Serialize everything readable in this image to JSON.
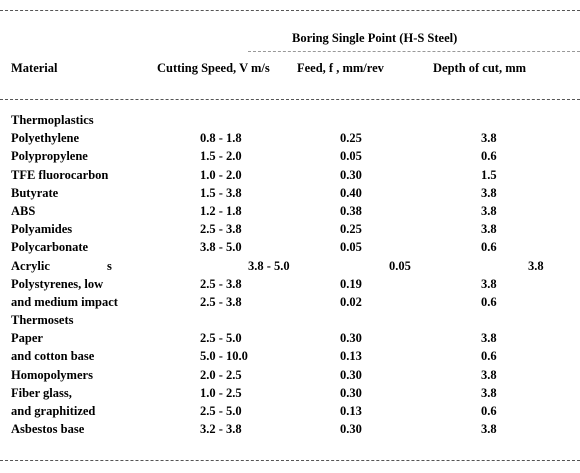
{
  "table": {
    "group_header": "Boring  Single  Point  (H-S Steel)",
    "columns": {
      "material": "Material",
      "speed": "Cutting  Speed, V m/s",
      "feed": "Feed, f , mm/rev",
      "depth": "Depth of cut, mm"
    },
    "rows": [
      {
        "material": "Thermoplastics",
        "speed": "",
        "feed": "",
        "depth": "",
        "section": true
      },
      {
        "material": "Polyethylene",
        "speed": "0.8 - 1.8",
        "feed": "0.25",
        "depth": "3.8"
      },
      {
        "material": "Polypropylene",
        "speed": "1.5 - 2.0",
        "feed": "0.05",
        "depth": "0.6"
      },
      {
        "material": "TFE fluorocarbon",
        "speed": "1.0 - 2.0",
        "feed": "0.30",
        "depth": "1.5"
      },
      {
        "material": "Butyrate",
        "speed": "1.5 - 3.8",
        "feed": "0.40",
        "depth": "3.8"
      },
      {
        "material": "ABS",
        "speed": "1.2 - 1.8",
        "feed": "0.38",
        "depth": "3.8"
      },
      {
        "material": "Polyamides",
        "speed": "2.5 - 3.8",
        "feed": "0.25",
        "depth": "3.8"
      },
      {
        "material": "Polycarbonate",
        "speed": "3.8 - 5.0",
        "feed": "0.05",
        "depth": "0.6"
      },
      {
        "material": "Acrylic",
        "suffix": "s",
        "speed": "3.8 - 5.0",
        "feed": "0.05",
        "depth": "3.8",
        "shifted": true
      },
      {
        "material": "Polystyrenes,  low",
        "speed": "2.5 - 3.8",
        "feed": "0.19",
        "depth": "3.8"
      },
      {
        "material": "and medium  impact",
        "speed": "2.5 - 3.8",
        "feed": "0.02",
        "depth": "0.6"
      },
      {
        "material": "Thermosets",
        "speed": "",
        "feed": "",
        "depth": "",
        "section": true
      },
      {
        "material": "Paper",
        "speed": "2.5 - 5.0",
        "feed": "0.30",
        "depth": "3.8"
      },
      {
        "material": "and cotton base",
        "speed": "5.0 - 10.0",
        "feed": "0.13",
        "depth": "0.6"
      },
      {
        "material": "Homopolymers",
        "speed": "2.0 - 2.5",
        "feed": "0.30",
        "depth": "3.8"
      },
      {
        "material": "Fiber glass,",
        "speed": "1.0 - 2.5",
        "feed": "0.30",
        "depth": "3.8"
      },
      {
        "material": "and graphitized",
        "speed": "2.5 - 5.0",
        "feed": "0.13",
        "depth": "0.6"
      },
      {
        "material": "Asbestos base",
        "speed": "3.2 - 3.8",
        "feed": "0.30",
        "depth": "3.8"
      }
    ]
  }
}
